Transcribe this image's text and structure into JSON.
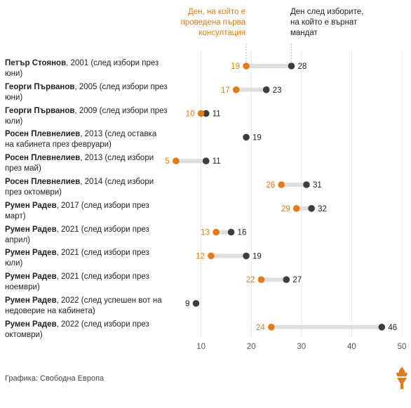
{
  "headers": {
    "first_consultation": "Ден, на който е проведена първа консултация",
    "mandate": "Ден след изборите, на който е върнат мандат"
  },
  "credit": "Графика: Свободна Европа",
  "colors": {
    "orange": "#e07b17",
    "dark": "#3d3d3d",
    "bar": "#dedede"
  },
  "chart_data": {
    "type": "dumbbell",
    "xlim": [
      0,
      50
    ],
    "xticks": [
      10,
      20,
      30,
      40,
      50
    ],
    "rows": [
      {
        "name": "Петър Стоянов",
        "desc": ", 2001 (след избори през юни)",
        "first": 19,
        "mandate": 28
      },
      {
        "name": "Георги Първанов",
        "desc": ", 2005 (след избори през юни)",
        "first": 17,
        "mandate": 23
      },
      {
        "name": "Георги Първанов",
        "desc": ", 2009 (след избори през юли)",
        "first": 10,
        "mandate": 11
      },
      {
        "name": "Росен Плевнелиев",
        "desc": ", 2013 (след оставка на кабинета през февруари)",
        "first": null,
        "mandate": 19
      },
      {
        "name": "Росен Плевнелиев",
        "desc": ", 2013 (след избори през май)",
        "first": 5,
        "mandate": 11
      },
      {
        "name": "Росен Плевнелиев",
        "desc": ", 2014 (след избори през октомври)",
        "first": 26,
        "mandate": 31
      },
      {
        "name": "Румен Радев",
        "desc": ", 2017 (след избори през март)",
        "first": 29,
        "mandate": 32
      },
      {
        "name": "Румен Радев",
        "desc": ", 2021 (след избори през април)",
        "first": 13,
        "mandate": 16
      },
      {
        "name": "Румен Радев",
        "desc": ", 2021 (след избори през юли)",
        "first": 12,
        "mandate": 19
      },
      {
        "name": "Румен Радев",
        "desc": ", 2021 (след избори през ноември)",
        "first": 22,
        "mandate": 27
      },
      {
        "name": "Румен Радев",
        "desc": ", 2022 (след успешен вот на недоверие на кабинета)",
        "first": null,
        "mandate": 9
      },
      {
        "name": "Румен Радев",
        "desc": ", 2022 (след избори през октомври)",
        "first": 24,
        "mandate": 46
      }
    ]
  }
}
